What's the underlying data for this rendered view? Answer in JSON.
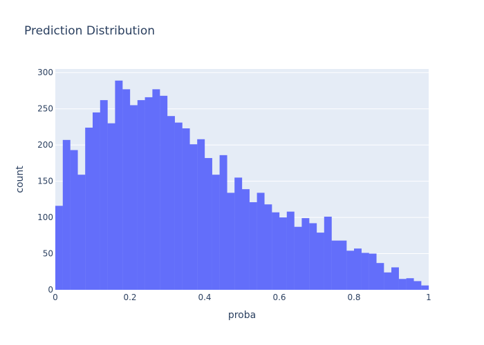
{
  "chart_data": {
    "type": "bar",
    "title": "Prediction Distribution",
    "xlabel": "proba",
    "ylabel": "count",
    "bin_width": 0.02,
    "x": [
      0.01,
      0.03,
      0.05,
      0.07,
      0.09,
      0.11,
      0.13,
      0.15,
      0.17,
      0.19,
      0.21,
      0.23,
      0.25,
      0.27,
      0.29,
      0.31,
      0.33,
      0.35,
      0.37,
      0.39,
      0.41,
      0.43,
      0.45,
      0.47,
      0.49,
      0.51,
      0.53,
      0.55,
      0.57,
      0.59,
      0.61,
      0.63,
      0.65,
      0.67,
      0.69,
      0.71,
      0.73,
      0.75,
      0.77,
      0.79,
      0.81,
      0.83,
      0.85,
      0.87,
      0.89,
      0.91,
      0.93,
      0.95,
      0.97,
      0.99
    ],
    "values": [
      116,
      207,
      193,
      159,
      224,
      245,
      262,
      230,
      289,
      277,
      255,
      262,
      266,
      277,
      268,
      240,
      231,
      223,
      201,
      208,
      182,
      159,
      186,
      134,
      155,
      139,
      121,
      134,
      118,
      107,
      100,
      108,
      87,
      99,
      92,
      79,
      101,
      68,
      68,
      54,
      57,
      51,
      50,
      37,
      24,
      31,
      15,
      16,
      12,
      6
    ],
    "xlim": [
      0,
      1
    ],
    "ylim": [
      0,
      305
    ],
    "xticks": [
      0,
      0.2,
      0.4,
      0.6,
      0.8,
      1
    ],
    "xtick_labels": [
      "0",
      "0.2",
      "0.4",
      "0.6",
      "0.8",
      "1"
    ],
    "yticks": [
      0,
      50,
      100,
      150,
      200,
      250,
      300
    ],
    "ytick_labels": [
      "0",
      "50",
      "100",
      "150",
      "200",
      "250",
      "300"
    ],
    "grid": true,
    "colors": {
      "bar": "#636efa",
      "plot_bg": "#e5ecf6",
      "grid": "#ffffff",
      "text": "#2a3f5f"
    }
  }
}
